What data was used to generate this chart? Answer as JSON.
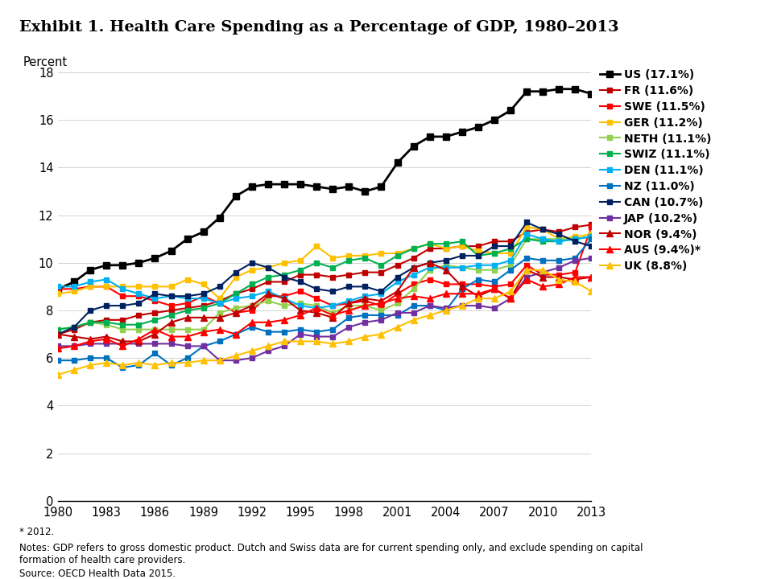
{
  "title": "Exhibit 1. Health Care Spending as a Percentage of GDP, 1980–2013",
  "ylabel": "Percent",
  "footnote1": "* 2012.",
  "footnote2": "Notes: GDP refers to gross domestic product. Dutch and Swiss data are for current spending only, and exclude spending on capital\nformation of health care providers.",
  "footnote3": "Source: OECD Health Data 2015.",
  "years": [
    1980,
    1981,
    1982,
    1983,
    1984,
    1985,
    1986,
    1987,
    1988,
    1989,
    1990,
    1991,
    1992,
    1993,
    1994,
    1995,
    1996,
    1997,
    1998,
    1999,
    2000,
    2001,
    2002,
    2003,
    2004,
    2005,
    2006,
    2007,
    2008,
    2009,
    2010,
    2011,
    2012,
    2013
  ],
  "series": [
    {
      "label": "US (17.1%)",
      "color": "#000000",
      "marker": "s",
      "linewidth": 2.0,
      "markersize": 6,
      "values": [
        8.9,
        9.2,
        9.7,
        9.9,
        9.9,
        10.0,
        10.2,
        10.5,
        11.0,
        11.3,
        11.9,
        12.8,
        13.2,
        13.3,
        13.3,
        13.3,
        13.2,
        13.1,
        13.2,
        13.0,
        13.2,
        14.2,
        14.9,
        15.3,
        15.3,
        15.5,
        15.7,
        16.0,
        16.4,
        17.2,
        17.2,
        17.3,
        17.3,
        17.1
      ]
    },
    {
      "label": "FR (11.6%)",
      "color": "#c00000",
      "marker": "s",
      "linewidth": 1.5,
      "markersize": 5,
      "values": [
        7.0,
        7.2,
        7.5,
        7.6,
        7.6,
        7.8,
        7.9,
        8.0,
        8.1,
        8.2,
        8.4,
        8.7,
        8.9,
        9.2,
        9.2,
        9.5,
        9.5,
        9.4,
        9.5,
        9.6,
        9.6,
        9.9,
        10.2,
        10.6,
        10.6,
        10.7,
        10.7,
        10.9,
        10.9,
        11.3,
        11.4,
        11.3,
        11.5,
        11.6
      ]
    },
    {
      "label": "SWE (11.5%)",
      "color": "#ff0000",
      "marker": "s",
      "linewidth": 1.5,
      "markersize": 5,
      "values": [
        8.9,
        8.9,
        9.0,
        9.0,
        8.6,
        8.6,
        8.4,
        8.2,
        8.3,
        8.6,
        8.3,
        7.9,
        8.0,
        8.6,
        8.6,
        8.8,
        8.5,
        8.2,
        8.3,
        8.4,
        8.2,
        8.7,
        9.1,
        9.3,
        9.1,
        9.1,
        9.1,
        9.0,
        9.1,
        9.9,
        9.5,
        9.5,
        9.6,
        11.5
      ]
    },
    {
      "label": "GER (11.2%)",
      "color": "#ffc000",
      "marker": "s",
      "linewidth": 1.5,
      "markersize": 5,
      "values": [
        8.7,
        8.8,
        9.0,
        9.0,
        9.0,
        9.0,
        9.0,
        9.0,
        9.3,
        9.1,
        8.5,
        9.4,
        9.7,
        9.8,
        10.0,
        10.1,
        10.7,
        10.2,
        10.3,
        10.3,
        10.4,
        10.4,
        10.6,
        10.8,
        10.6,
        10.7,
        10.5,
        10.4,
        10.4,
        11.5,
        11.4,
        11.0,
        11.1,
        11.2
      ]
    },
    {
      "label": "NETH (11.1%)",
      "color": "#92d050",
      "marker": "s",
      "linewidth": 1.5,
      "markersize": 5,
      "values": [
        7.2,
        7.3,
        7.5,
        7.4,
        7.2,
        7.2,
        7.2,
        7.2,
        7.2,
        7.2,
        7.9,
        8.1,
        8.2,
        8.4,
        8.2,
        8.3,
        8.2,
        7.9,
        8.2,
        8.2,
        8.0,
        8.3,
        8.9,
        9.7,
        9.9,
        9.8,
        9.7,
        9.7,
        9.9,
        11.0,
        11.0,
        11.0,
        11.0,
        11.1
      ]
    },
    {
      "label": "SWIZ (11.1%)",
      "color": "#00b050",
      "marker": "s",
      "linewidth": 1.5,
      "markersize": 5,
      "values": [
        7.2,
        7.3,
        7.5,
        7.5,
        7.4,
        7.4,
        7.6,
        7.8,
        8.0,
        8.1,
        8.3,
        8.7,
        9.1,
        9.4,
        9.5,
        9.7,
        10.0,
        9.8,
        10.1,
        10.2,
        9.9,
        10.3,
        10.6,
        10.8,
        10.8,
        10.9,
        10.3,
        10.4,
        10.6,
        11.0,
        10.9,
        10.9,
        11.0,
        11.1
      ]
    },
    {
      "label": "DEN (11.1%)",
      "color": "#00b0f0",
      "marker": "s",
      "linewidth": 1.5,
      "markersize": 5,
      "values": [
        9.0,
        9.0,
        9.2,
        9.3,
        8.9,
        8.7,
        8.5,
        8.6,
        8.5,
        8.5,
        8.3,
        8.5,
        8.6,
        8.8,
        8.5,
        8.2,
        8.1,
        8.2,
        8.4,
        8.6,
        8.7,
        9.2,
        9.5,
        9.8,
        9.8,
        9.8,
        9.9,
        9.9,
        10.1,
        11.2,
        11.0,
        10.9,
        11.0,
        11.1
      ]
    },
    {
      "label": "NZ (11.0%)",
      "color": "#0070c0",
      "marker": "s",
      "linewidth": 1.5,
      "markersize": 5,
      "values": [
        5.9,
        5.9,
        6.0,
        6.0,
        5.6,
        5.7,
        6.2,
        5.7,
        6.0,
        6.5,
        6.7,
        7.0,
        7.3,
        7.1,
        7.1,
        7.2,
        7.1,
        7.2,
        7.7,
        7.8,
        7.8,
        7.8,
        8.2,
        8.2,
        8.0,
        8.9,
        9.3,
        9.2,
        9.7,
        10.2,
        10.1,
        10.1,
        10.2,
        11.0
      ]
    },
    {
      "label": "CAN (10.7%)",
      "color": "#002060",
      "marker": "s",
      "linewidth": 1.5,
      "markersize": 5,
      "values": [
        7.0,
        7.3,
        8.0,
        8.2,
        8.2,
        8.3,
        8.7,
        8.6,
        8.6,
        8.7,
        9.0,
        9.6,
        10.0,
        9.8,
        9.4,
        9.2,
        8.9,
        8.8,
        9.0,
        9.0,
        8.8,
        9.4,
        9.8,
        10.0,
        10.1,
        10.3,
        10.3,
        10.7,
        10.7,
        11.7,
        11.4,
        11.2,
        10.9,
        10.7
      ]
    },
    {
      "label": "JAP (10.2%)",
      "color": "#7030a0",
      "marker": "s",
      "linewidth": 1.5,
      "markersize": 5,
      "values": [
        6.5,
        6.5,
        6.6,
        6.6,
        6.6,
        6.6,
        6.6,
        6.6,
        6.5,
        6.5,
        5.9,
        5.9,
        6.0,
        6.3,
        6.5,
        7.0,
        6.9,
        6.9,
        7.3,
        7.5,
        7.6,
        7.9,
        7.9,
        8.2,
        8.1,
        8.2,
        8.2,
        8.1,
        8.5,
        9.4,
        9.6,
        9.8,
        10.1,
        10.2
      ]
    },
    {
      "label": "NOR (9.4%)",
      "color": "#c00000",
      "marker": "^",
      "linewidth": 1.5,
      "markersize": 6,
      "values": [
        7.0,
        6.9,
        6.8,
        6.9,
        6.7,
        6.7,
        7.0,
        7.5,
        7.7,
        7.7,
        7.7,
        7.9,
        8.2,
        8.7,
        8.5,
        8.0,
        7.9,
        7.7,
        8.3,
        8.5,
        8.4,
        8.8,
        9.8,
        10.0,
        9.7,
        9.0,
        8.6,
        8.9,
        8.5,
        9.7,
        9.4,
        9.4,
        9.3,
        9.4
      ]
    },
    {
      "label": "AUS (9.4%)*",
      "color": "#ff0000",
      "marker": "^",
      "linewidth": 1.5,
      "markersize": 6,
      "values": [
        6.4,
        6.5,
        6.7,
        6.8,
        6.5,
        6.8,
        7.2,
        6.9,
        6.9,
        7.1,
        7.2,
        7.0,
        7.5,
        7.5,
        7.6,
        7.8,
        8.1,
        7.8,
        8.0,
        8.2,
        8.3,
        8.5,
        8.6,
        8.5,
        8.7,
        8.7,
        8.7,
        8.9,
        8.5,
        9.3,
        9.0,
        9.1,
        9.4,
        9.4
      ]
    },
    {
      "label": "UK (8.8%)",
      "color": "#ffc000",
      "marker": "^",
      "linewidth": 1.5,
      "markersize": 6,
      "values": [
        5.3,
        5.5,
        5.7,
        5.8,
        5.7,
        5.8,
        5.7,
        5.8,
        5.8,
        5.9,
        5.9,
        6.1,
        6.3,
        6.5,
        6.7,
        6.7,
        6.7,
        6.6,
        6.7,
        6.9,
        7.0,
        7.3,
        7.6,
        7.8,
        8.0,
        8.2,
        8.5,
        8.5,
        8.8,
        9.7,
        9.7,
        9.3,
        9.2,
        8.8
      ]
    }
  ]
}
